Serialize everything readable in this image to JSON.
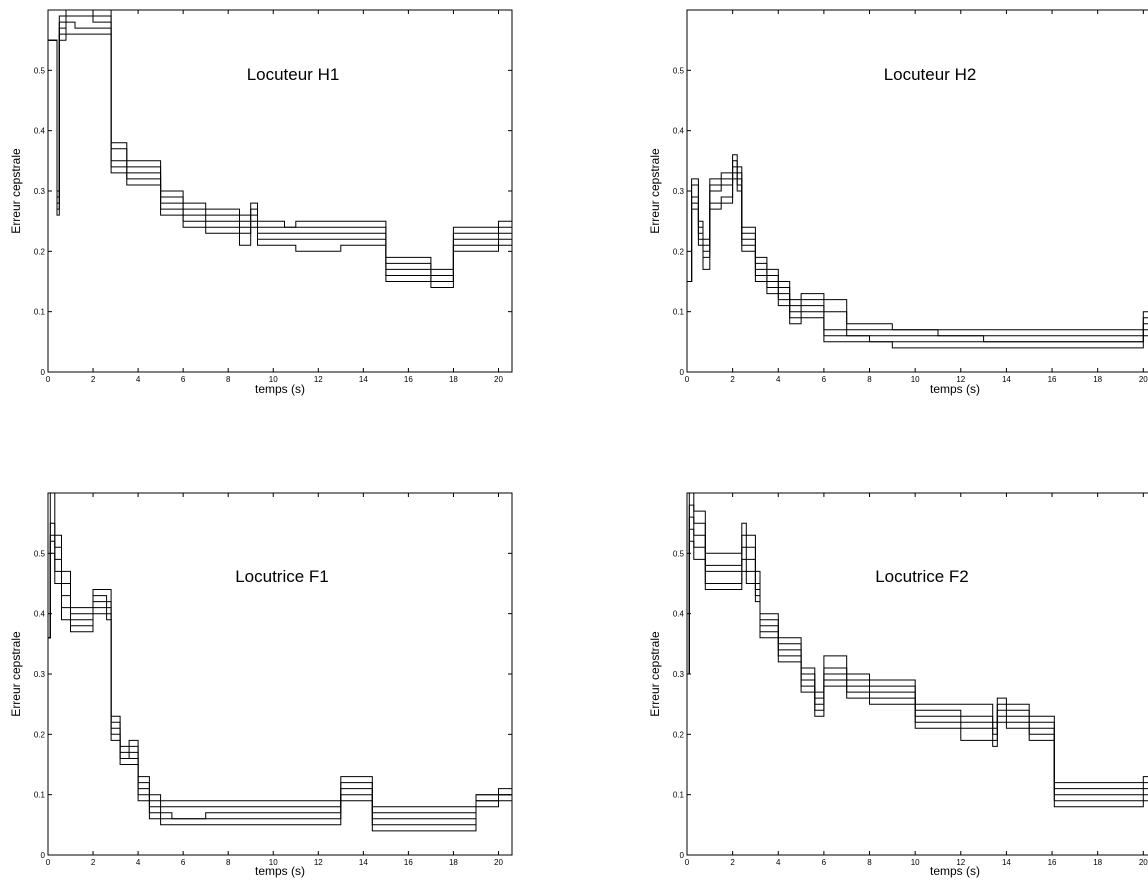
{
  "chart_data": [
    {
      "type": "line",
      "title": "Locuteur H1",
      "xlabel": "temps (s)",
      "ylabel": "Erreur cepstrale",
      "xlim": [
        0,
        20.6
      ],
      "ylim": [
        0,
        0.6
      ],
      "xticks": [
        "0",
        "2",
        "4",
        "6",
        "8",
        "10",
        "12",
        "14",
        "16",
        "18",
        "20"
      ],
      "yticks": [
        "0",
        "0.1",
        "0.2",
        "0.3",
        "0.4",
        "0.5"
      ],
      "grid": false,
      "x": [
        0,
        0.4,
        0.5,
        0.8,
        1.2,
        2.0,
        2.6,
        2.8,
        3.5,
        4.0,
        5.0,
        6.0,
        7.0,
        8.5,
        9.0,
        9.3,
        10.5,
        11.0,
        13.0,
        14.8,
        15.0,
        16.0,
        17.0,
        18.0,
        19.0,
        20.0,
        20.6
      ],
      "series": [
        {
          "values": [
            0.55,
            0.3,
            0.59,
            0.6,
            0.6,
            0.6,
            0.6,
            0.38,
            0.35,
            0.35,
            0.3,
            0.28,
            0.27,
            0.26,
            0.28,
            0.25,
            0.24,
            0.25,
            0.25,
            0.25,
            0.19,
            0.19,
            0.17,
            0.24,
            0.24,
            0.25,
            0.24
          ]
        },
        {
          "values": [
            0.55,
            0.29,
            0.58,
            0.6,
            0.6,
            0.59,
            0.59,
            0.37,
            0.34,
            0.34,
            0.29,
            0.27,
            0.26,
            0.25,
            0.27,
            0.24,
            0.24,
            0.24,
            0.24,
            0.24,
            0.18,
            0.18,
            0.16,
            0.23,
            0.23,
            0.24,
            0.23
          ]
        },
        {
          "values": [
            0.55,
            0.28,
            0.57,
            0.59,
            0.59,
            0.58,
            0.58,
            0.35,
            0.33,
            0.33,
            0.28,
            0.26,
            0.25,
            0.24,
            0.26,
            0.23,
            0.23,
            0.23,
            0.23,
            0.23,
            0.17,
            0.17,
            0.15,
            0.22,
            0.22,
            0.23,
            0.22
          ]
        },
        {
          "values": [
            0.55,
            0.27,
            0.56,
            0.58,
            0.57,
            0.57,
            0.57,
            0.34,
            0.32,
            0.32,
            0.27,
            0.25,
            0.24,
            0.23,
            0.25,
            0.22,
            0.22,
            0.22,
            0.22,
            0.22,
            0.16,
            0.16,
            0.15,
            0.21,
            0.21,
            0.22,
            0.21
          ]
        },
        {
          "values": [
            0.55,
            0.26,
            0.55,
            0.56,
            0.56,
            0.56,
            0.56,
            0.33,
            0.31,
            0.31,
            0.26,
            0.24,
            0.23,
            0.21,
            0.24,
            0.21,
            0.21,
            0.2,
            0.21,
            0.21,
            0.15,
            0.15,
            0.14,
            0.2,
            0.2,
            0.21,
            0.2
          ]
        }
      ]
    },
    {
      "type": "line",
      "title": "Locuteur H2",
      "xlabel": "temps (s)",
      "ylabel": "Erreur cepstrale",
      "xlim": [
        0,
        20.6
      ],
      "ylim": [
        0,
        0.6
      ],
      "xticks": [
        "0",
        "2",
        "4",
        "6",
        "8",
        "10",
        "12",
        "14",
        "16",
        "18",
        "20"
      ],
      "yticks": [
        "0",
        "0.1",
        "0.2",
        "0.3",
        "0.4",
        "0.5"
      ],
      "grid": false,
      "x": [
        0,
        0.2,
        0.5,
        0.7,
        1.0,
        1.5,
        2.0,
        2.2,
        2.4,
        3.0,
        3.5,
        4.0,
        4.5,
        5.0,
        6.0,
        7.0,
        8.0,
        9.0,
        11.0,
        13.0,
        15.0,
        17.0,
        19.0,
        20.0,
        20.6
      ],
      "series": [
        {
          "values": [
            0.15,
            0.32,
            0.25,
            0.22,
            0.32,
            0.33,
            0.36,
            0.34,
            0.24,
            0.19,
            0.17,
            0.15,
            0.12,
            0.13,
            0.12,
            0.08,
            0.08,
            0.07,
            0.07,
            0.07,
            0.07,
            0.07,
            0.07,
            0.1,
            0.09
          ]
        },
        {
          "values": [
            0.15,
            0.31,
            0.24,
            0.21,
            0.31,
            0.32,
            0.35,
            0.33,
            0.23,
            0.18,
            0.16,
            0.14,
            0.11,
            0.12,
            0.1,
            0.07,
            0.07,
            0.07,
            0.06,
            0.06,
            0.06,
            0.06,
            0.06,
            0.09,
            0.08
          ]
        },
        {
          "values": [
            0.15,
            0.29,
            0.23,
            0.2,
            0.3,
            0.31,
            0.34,
            0.32,
            0.22,
            0.17,
            0.15,
            0.13,
            0.1,
            0.11,
            0.07,
            0.06,
            0.06,
            0.06,
            0.06,
            0.05,
            0.05,
            0.05,
            0.05,
            0.08,
            0.07
          ]
        },
        {
          "values": [
            0.15,
            0.28,
            0.22,
            0.19,
            0.28,
            0.29,
            0.33,
            0.31,
            0.21,
            0.16,
            0.14,
            0.12,
            0.09,
            0.1,
            0.06,
            0.06,
            0.05,
            0.05,
            0.05,
            0.05,
            0.05,
            0.05,
            0.05,
            0.07,
            0.06
          ]
        },
        {
          "values": [
            0.15,
            0.27,
            0.21,
            0.17,
            0.27,
            0.28,
            0.32,
            0.3,
            0.2,
            0.15,
            0.13,
            0.11,
            0.08,
            0.09,
            0.05,
            0.05,
            0.05,
            0.04,
            0.04,
            0.04,
            0.04,
            0.04,
            0.04,
            0.06,
            0.05
          ]
        }
      ]
    },
    {
      "type": "line",
      "title": "Locutrice F1",
      "xlabel": "temps (s)",
      "ylabel": "Erreur cepstrale",
      "xlim": [
        0,
        20.6
      ],
      "ylim": [
        0,
        0.6
      ],
      "xticks": [
        "0",
        "2",
        "4",
        "6",
        "8",
        "10",
        "12",
        "14",
        "16",
        "18",
        "20"
      ],
      "yticks": [
        "0",
        "0.1",
        "0.2",
        "0.3",
        "0.4",
        "0.5"
      ],
      "grid": false,
      "x": [
        0,
        0.1,
        0.3,
        0.6,
        1.0,
        2.0,
        2.6,
        2.8,
        3.2,
        3.6,
        4.0,
        4.5,
        5.0,
        5.5,
        7.0,
        9.0,
        11.0,
        12.5,
        13.0,
        14.0,
        14.4,
        16.0,
        18.0,
        19.0,
        20.0,
        20.6
      ],
      "series": [
        {
          "values": [
            0.36,
            0.6,
            0.53,
            0.47,
            0.41,
            0.44,
            0.44,
            0.23,
            0.18,
            0.19,
            0.13,
            0.1,
            0.09,
            0.09,
            0.09,
            0.09,
            0.09,
            0.09,
            0.13,
            0.13,
            0.08,
            0.08,
            0.08,
            0.1,
            0.1,
            0.1
          ]
        },
        {
          "values": [
            0.36,
            0.55,
            0.51,
            0.45,
            0.4,
            0.43,
            0.42,
            0.22,
            0.17,
            0.18,
            0.12,
            0.09,
            0.08,
            0.08,
            0.08,
            0.08,
            0.08,
            0.08,
            0.12,
            0.12,
            0.07,
            0.07,
            0.07,
            0.1,
            0.11,
            0.1
          ]
        },
        {
          "values": [
            0.36,
            0.53,
            0.49,
            0.43,
            0.39,
            0.42,
            0.41,
            0.21,
            0.16,
            0.17,
            0.11,
            0.08,
            0.07,
            0.06,
            0.07,
            0.07,
            0.07,
            0.07,
            0.11,
            0.11,
            0.06,
            0.06,
            0.06,
            0.09,
            0.1,
            0.09
          ]
        },
        {
          "values": [
            0.36,
            0.52,
            0.47,
            0.41,
            0.38,
            0.41,
            0.4,
            0.2,
            0.16,
            0.16,
            0.1,
            0.07,
            0.06,
            0.06,
            0.06,
            0.06,
            0.06,
            0.06,
            0.1,
            0.1,
            0.05,
            0.05,
            0.05,
            0.09,
            0.1,
            0.08
          ]
        },
        {
          "values": [
            0.36,
            0.5,
            0.45,
            0.39,
            0.37,
            0.4,
            0.39,
            0.19,
            0.15,
            0.15,
            0.09,
            0.06,
            0.05,
            0.05,
            0.05,
            0.05,
            0.05,
            0.05,
            0.09,
            0.09,
            0.04,
            0.04,
            0.04,
            0.08,
            0.09,
            0.08
          ]
        }
      ]
    },
    {
      "type": "line",
      "title": "Locutrice F2",
      "xlabel": "temps (s)",
      "ylabel": "Erreur cepstrale",
      "xlim": [
        0,
        20.6
      ],
      "ylim": [
        0,
        0.6
      ],
      "xticks": [
        "0",
        "2",
        "4",
        "6",
        "8",
        "10",
        "12",
        "14",
        "16",
        "18",
        "20"
      ],
      "yticks": [
        "0",
        "0.1",
        "0.2",
        "0.3",
        "0.4",
        "0.5"
      ],
      "grid": false,
      "x": [
        0,
        0.1,
        0.3,
        0.8,
        2.4,
        2.6,
        3.0,
        3.2,
        4.0,
        5.0,
        5.6,
        6.0,
        7.0,
        8.0,
        9.0,
        10.0,
        12.0,
        13.4,
        13.6,
        14.0,
        15.0,
        16.0,
        16.1,
        18.0,
        19.0,
        20.0,
        20.6
      ],
      "series": [
        {
          "values": [
            0.3,
            0.6,
            0.57,
            0.5,
            0.55,
            0.53,
            0.47,
            0.4,
            0.36,
            0.31,
            0.27,
            0.33,
            0.3,
            0.29,
            0.29,
            0.25,
            0.25,
            0.22,
            0.26,
            0.25,
            0.23,
            0.23,
            0.12,
            0.12,
            0.12,
            0.13,
            0.13
          ]
        },
        {
          "values": [
            0.3,
            0.58,
            0.55,
            0.48,
            0.53,
            0.51,
            0.45,
            0.39,
            0.35,
            0.3,
            0.26,
            0.31,
            0.29,
            0.28,
            0.28,
            0.24,
            0.23,
            0.21,
            0.25,
            0.24,
            0.22,
            0.22,
            0.11,
            0.11,
            0.11,
            0.12,
            0.12
          ]
        },
        {
          "values": [
            0.3,
            0.56,
            0.53,
            0.47,
            0.51,
            0.49,
            0.44,
            0.38,
            0.34,
            0.29,
            0.25,
            0.3,
            0.28,
            0.27,
            0.27,
            0.23,
            0.22,
            0.2,
            0.24,
            0.23,
            0.21,
            0.21,
            0.1,
            0.1,
            0.1,
            0.11,
            0.11
          ]
        },
        {
          "values": [
            0.3,
            0.54,
            0.51,
            0.45,
            0.49,
            0.47,
            0.43,
            0.37,
            0.33,
            0.28,
            0.24,
            0.29,
            0.27,
            0.26,
            0.26,
            0.22,
            0.21,
            0.19,
            0.23,
            0.22,
            0.2,
            0.2,
            0.09,
            0.09,
            0.09,
            0.1,
            0.1
          ]
        },
        {
          "values": [
            0.3,
            0.52,
            0.49,
            0.44,
            0.47,
            0.45,
            0.42,
            0.36,
            0.32,
            0.27,
            0.23,
            0.28,
            0.26,
            0.25,
            0.25,
            0.21,
            0.19,
            0.18,
            0.22,
            0.21,
            0.19,
            0.19,
            0.08,
            0.08,
            0.08,
            0.09,
            0.09
          ]
        }
      ]
    }
  ]
}
